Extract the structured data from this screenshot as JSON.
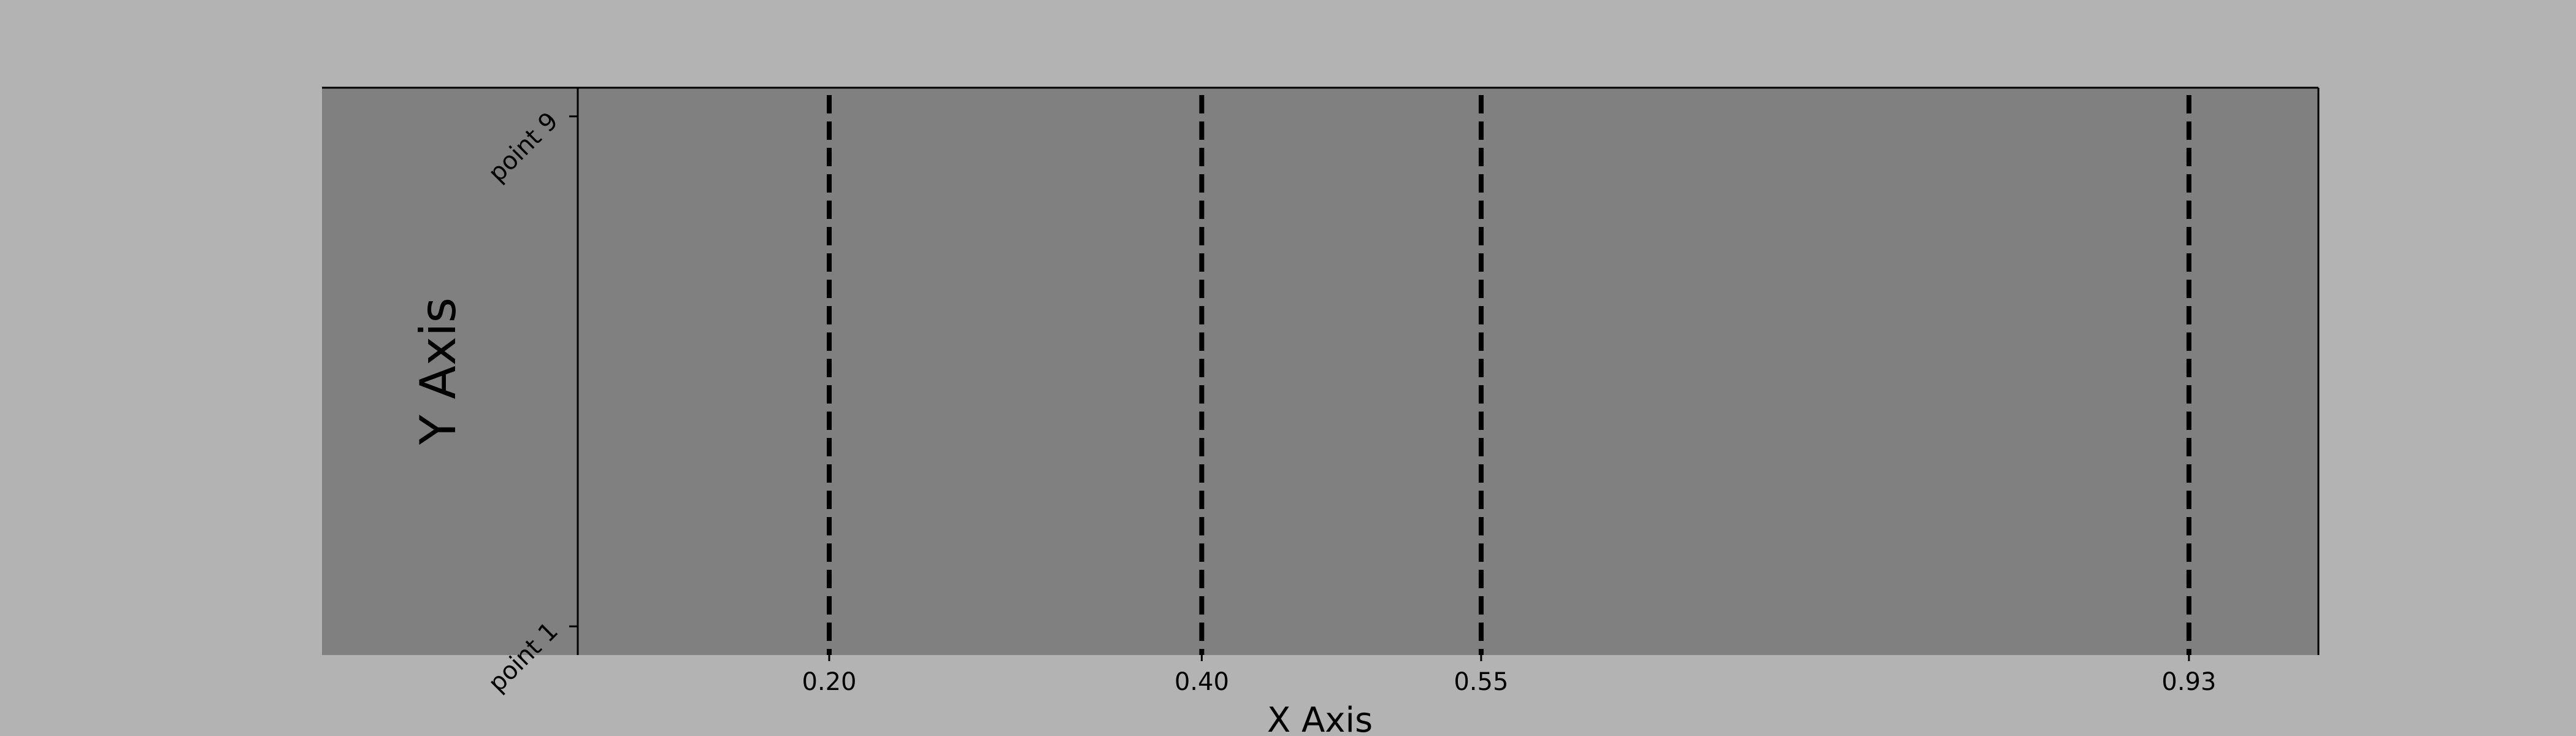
{
  "colors": {
    "figure_background": "#b3b3b3",
    "axes_background": "#808080",
    "line_color": "#000000"
  },
  "chart_data": {
    "type": "line",
    "title": "",
    "xlabel": "X Axis",
    "ylabel": "Y Axis",
    "xlim": [
      0.065,
      0.9995
    ],
    "ylim": [
      0.55,
      9.45
    ],
    "grid": false,
    "line_style": "dashed",
    "vertical_lines": [
      {
        "x": 0.2,
        "label": "0.20"
      },
      {
        "x": 0.4,
        "label": "0.40"
      },
      {
        "x": 0.55,
        "label": "0.55"
      },
      {
        "x": 0.93,
        "label": "0.93"
      }
    ],
    "y_ticks": [
      {
        "value": 1,
        "label": "point 1"
      },
      {
        "value": 9,
        "label": "point 9"
      }
    ]
  }
}
